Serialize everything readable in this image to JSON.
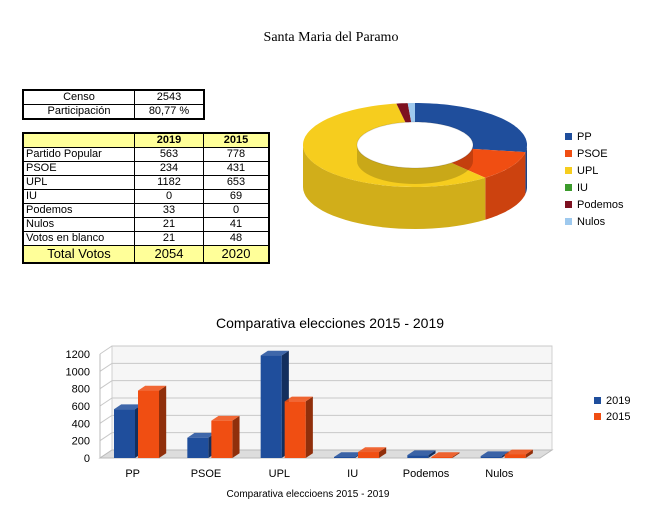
{
  "title": "Santa Maria del Paramo",
  "summary": [
    {
      "label": "Censo",
      "value": "2543"
    },
    {
      "label": "Participación",
      "value": "80,77 %"
    }
  ],
  "results_table": {
    "headers": [
      "",
      "2019",
      "2015"
    ],
    "rows": [
      [
        "Partido Popular",
        "563",
        "778"
      ],
      [
        "PSOE",
        "234",
        "431"
      ],
      [
        "UPL",
        "1182",
        "653"
      ],
      [
        "IU",
        "0",
        "69"
      ],
      [
        "Podemos",
        "33",
        "0"
      ],
      [
        "Nulos",
        "21",
        "41"
      ],
      [
        "Votos en blanco",
        "21",
        "48"
      ]
    ],
    "total": [
      "Total Votos",
      "2054",
      "2020"
    ]
  },
  "chart_data": [
    {
      "type": "pie",
      "style": "3d-donut",
      "title": "",
      "categories": [
        "PP",
        "PSOE",
        "UPL",
        "IU",
        "Podemos",
        "Nulos"
      ],
      "values": [
        563,
        234,
        1182,
        0,
        33,
        21
      ],
      "colors": [
        "#1f4e9c",
        "#f04e12",
        "#f6cd1e",
        "#3c9b2c",
        "#7d1020",
        "#9ec9ee"
      ],
      "legend": "right"
    },
    {
      "type": "bar",
      "style": "3d-clustered",
      "title": "Comparativa elecciones 2015 - 2019",
      "xlabel": "Comparativa eleccioens 2015 - 2019",
      "ylabel": "",
      "categories": [
        "PP",
        "PSOE",
        "UPL",
        "IU",
        "Podemos",
        "Nulos"
      ],
      "yticks": [
        0,
        200,
        400,
        600,
        800,
        1000,
        1200
      ],
      "ylim": [
        0,
        1200
      ],
      "series": [
        {
          "name": "2019",
          "values": [
            563,
            234,
            1182,
            0,
            33,
            21
          ],
          "color": "#1f4e9c"
        },
        {
          "name": "2015",
          "values": [
            778,
            431,
            653,
            69,
            0,
            41
          ],
          "color": "#f04e12"
        }
      ],
      "legend": "right"
    }
  ]
}
